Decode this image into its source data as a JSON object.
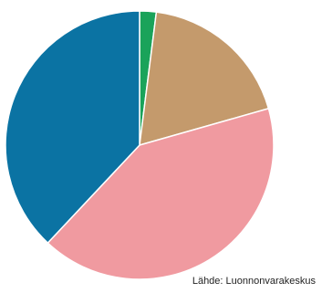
{
  "chart_data": {
    "type": "pie",
    "title": "",
    "source": "Lähde: Luonnonvarakeskus",
    "start_angle_deg": 0,
    "direction": "clockwise",
    "slices": [
      {
        "value": 2.0,
        "color": "#1aa35a"
      },
      {
        "value": 18.6,
        "color": "#c49a6c"
      },
      {
        "value": 41.4,
        "color": "#f09aa0"
      },
      {
        "value": 38.0,
        "color": "#0b73a3"
      }
    ]
  }
}
